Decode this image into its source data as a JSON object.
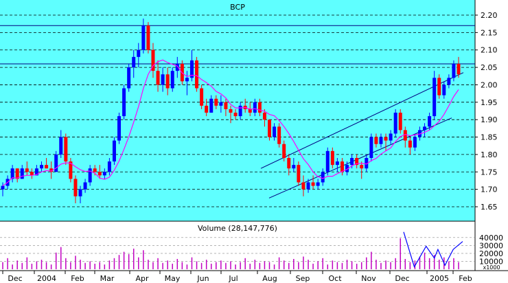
{
  "chart_data": [
    {
      "type": "candlestick",
      "title": "BCP",
      "ylim": [
        1.62,
        2.22
      ],
      "y_ticks": [
        "2.20",
        "2.15",
        "2.10",
        "2.05",
        "2.00",
        "1.95",
        "1.90",
        "1.85",
        "1.80",
        "1.75",
        "1.70",
        "1.65"
      ],
      "x_ticks": [
        "Dec",
        "2004",
        "Feb",
        "Mar",
        "Apr",
        "May",
        "Jun",
        "Jul",
        "Aug",
        "Sep",
        "Oct",
        "Nov",
        "Dec",
        "2005",
        "Feb"
      ],
      "grid": "dashed horizontal",
      "colors": {
        "background": "#5FFFFF",
        "up": "#0000FF",
        "down": "#FF0000",
        "moving_average": "#FF00FF",
        "lines": "#000080",
        "axis_text": "#000000"
      },
      "resistance_levels": [
        2.17,
        2.06
      ],
      "channel": {
        "upper": [
          [
            "Aug",
            1.76
          ],
          [
            "Feb",
            2.035
          ]
        ],
        "lower": [
          [
            "Aug",
            1.675
          ],
          [
            "Feb",
            1.905
          ]
        ]
      },
      "series": [
        {
          "values": [
            [
              1.7,
              1.72,
              1.68,
              1.71
            ],
            [
              1.71,
              1.74,
              1.7,
              1.73
            ],
            [
              1.73,
              1.77,
              1.72,
              1.76
            ],
            [
              1.76,
              1.76,
              1.72,
              1.73
            ],
            [
              1.73,
              1.77,
              1.73,
              1.76
            ],
            [
              1.76,
              1.78,
              1.74,
              1.75
            ],
            [
              1.75,
              1.76,
              1.73,
              1.74
            ],
            [
              1.74,
              1.77,
              1.74,
              1.76
            ],
            [
              1.76,
              1.78,
              1.75,
              1.77
            ],
            [
              1.77,
              1.79,
              1.76,
              1.76
            ],
            [
              1.76,
              1.78,
              1.73,
              1.75
            ],
            [
              1.75,
              1.81,
              1.75,
              1.8
            ],
            [
              1.8,
              1.87,
              1.79,
              1.85
            ],
            [
              1.85,
              1.86,
              1.77,
              1.78
            ],
            [
              1.78,
              1.79,
              1.72,
              1.73
            ],
            [
              1.73,
              1.74,
              1.66,
              1.68
            ],
            [
              1.68,
              1.71,
              1.66,
              1.7
            ],
            [
              1.7,
              1.73,
              1.69,
              1.72
            ],
            [
              1.72,
              1.77,
              1.71,
              1.76
            ],
            [
              1.76,
              1.77,
              1.74,
              1.75
            ],
            [
              1.75,
              1.77,
              1.73,
              1.74
            ],
            [
              1.74,
              1.76,
              1.73,
              1.75
            ],
            [
              1.75,
              1.79,
              1.74,
              1.78
            ],
            [
              1.78,
              1.85,
              1.77,
              1.84
            ],
            [
              1.84,
              1.92,
              1.83,
              1.91
            ],
            [
              1.91,
              2.0,
              1.9,
              1.99
            ],
            [
              1.99,
              2.06,
              1.98,
              2.05
            ],
            [
              2.05,
              2.1,
              2.02,
              2.08
            ],
            [
              2.08,
              2.12,
              2.05,
              2.1
            ],
            [
              2.1,
              2.19,
              2.09,
              2.17
            ],
            [
              2.17,
              2.18,
              2.09,
              2.1
            ],
            [
              2.1,
              2.12,
              2.02,
              2.04
            ],
            [
              2.04,
              2.07,
              1.98,
              2.0
            ],
            [
              2.0,
              2.05,
              1.98,
              2.03
            ],
            [
              2.03,
              2.05,
              1.97,
              1.99
            ],
            [
              1.99,
              2.05,
              1.98,
              2.04
            ],
            [
              2.04,
              2.08,
              2.02,
              2.06
            ],
            [
              2.06,
              2.07,
              2.0,
              2.01
            ],
            [
              2.01,
              2.04,
              1.97,
              2.02
            ],
            [
              2.02,
              2.1,
              2.01,
              2.07
            ],
            [
              2.07,
              2.08,
              1.98,
              1.99
            ],
            [
              1.99,
              2.0,
              1.93,
              1.94
            ],
            [
              1.94,
              1.96,
              1.91,
              1.92
            ],
            [
              1.92,
              1.97,
              1.92,
              1.96
            ],
            [
              1.96,
              1.97,
              1.93,
              1.94
            ],
            [
              1.94,
              1.97,
              1.92,
              1.95
            ],
            [
              1.95,
              1.96,
              1.91,
              1.93
            ],
            [
              1.93,
              1.94,
              1.89,
              1.92
            ],
            [
              1.92,
              1.93,
              1.9,
              1.91
            ],
            [
              1.91,
              1.95,
              1.9,
              1.94
            ],
            [
              1.94,
              1.96,
              1.92,
              1.93
            ],
            [
              1.93,
              1.95,
              1.91,
              1.92
            ],
            [
              1.92,
              1.96,
              1.91,
              1.95
            ],
            [
              1.95,
              1.96,
              1.91,
              1.92
            ],
            [
              1.92,
              1.93,
              1.88,
              1.9
            ],
            [
              1.9,
              1.88,
              1.84,
              1.85
            ],
            [
              1.85,
              1.89,
              1.84,
              1.88
            ],
            [
              1.88,
              1.89,
              1.82,
              1.83
            ],
            [
              1.83,
              1.84,
              1.78,
              1.79
            ],
            [
              1.79,
              1.8,
              1.74,
              1.76
            ],
            [
              1.76,
              1.79,
              1.75,
              1.77
            ],
            [
              1.77,
              1.78,
              1.71,
              1.72
            ],
            [
              1.72,
              1.74,
              1.68,
              1.7
            ],
            [
              1.7,
              1.73,
              1.69,
              1.72
            ],
            [
              1.72,
              1.74,
              1.7,
              1.71
            ],
            [
              1.71,
              1.73,
              1.7,
              1.72
            ],
            [
              1.72,
              1.76,
              1.71,
              1.75
            ],
            [
              1.75,
              1.82,
              1.74,
              1.81
            ],
            [
              1.81,
              1.82,
              1.76,
              1.77
            ],
            [
              1.77,
              1.79,
              1.75,
              1.78
            ],
            [
              1.78,
              1.79,
              1.74,
              1.75
            ],
            [
              1.75,
              1.78,
              1.74,
              1.77
            ],
            [
              1.77,
              1.8,
              1.76,
              1.79
            ],
            [
              1.79,
              1.8,
              1.76,
              1.77
            ],
            [
              1.77,
              1.78,
              1.73,
              1.76
            ],
            [
              1.76,
              1.8,
              1.75,
              1.79
            ],
            [
              1.79,
              1.86,
              1.78,
              1.85
            ],
            [
              1.85,
              1.86,
              1.82,
              1.83
            ],
            [
              1.83,
              1.86,
              1.82,
              1.85
            ],
            [
              1.85,
              1.86,
              1.81,
              1.84
            ],
            [
              1.84,
              1.87,
              1.83,
              1.86
            ],
            [
              1.86,
              1.93,
              1.85,
              1.92
            ],
            [
              1.92,
              1.93,
              1.86,
              1.87
            ],
            [
              1.87,
              1.88,
              1.82,
              1.84
            ],
            [
              1.84,
              1.85,
              1.8,
              1.82
            ],
            [
              1.82,
              1.86,
              1.81,
              1.85
            ],
            [
              1.85,
              1.88,
              1.84,
              1.87
            ],
            [
              1.87,
              1.89,
              1.85,
              1.88
            ],
            [
              1.88,
              1.92,
              1.87,
              1.91
            ],
            [
              1.91,
              2.04,
              1.9,
              2.02
            ],
            [
              2.02,
              2.03,
              1.96,
              1.97
            ],
            [
              1.97,
              2.01,
              1.96,
              2.0
            ],
            [
              2.0,
              2.03,
              1.99,
              2.02
            ],
            [
              2.02,
              2.07,
              2.01,
              2.06
            ],
            [
              2.06,
              2.08,
              2.02,
              2.03
            ]
          ]
        }
      ],
      "moving_average_note": "magenta moving-average line computed from close values",
      "volume": {
        "label": "Volume (28,147,776)",
        "scale_label": "x1000",
        "y_ticks": [
          "40000",
          "30000",
          "20000",
          "10000"
        ],
        "ylim": [
          0,
          45000
        ],
        "values": [
          9000,
          14000,
          6000,
          11000,
          8000,
          15000,
          7000,
          10000,
          12000,
          9000,
          6000,
          21000,
          28000,
          14000,
          9000,
          17000,
          12000,
          8000,
          10000,
          7000,
          9000,
          6000,
          11000,
          14000,
          18000,
          22000,
          19000,
          26000,
          15000,
          24000,
          12000,
          9000,
          14000,
          8000,
          11000,
          7000,
          13000,
          9000,
          6000,
          15000,
          10000,
          8000,
          12000,
          7000,
          9000,
          11000,
          8000,
          10000,
          6000,
          9000,
          14000,
          7000,
          12000,
          8000,
          10000,
          9000,
          6000,
          15000,
          11000,
          8000,
          13000,
          9000,
          16000,
          12000,
          7000,
          10000,
          14000,
          6000,
          11000,
          9000,
          8000,
          12000,
          10000,
          7000,
          9000,
          15000,
          22000,
          12000,
          8000,
          11000,
          9000,
          14000,
          39000,
          13000,
          9000,
          11000,
          16000,
          21000,
          14000,
          18000,
          12000,
          15000,
          10000,
          14000,
          9000
        ],
        "overlay": [
          [
            0,
            47000
          ],
          [
            0.18,
            3000
          ],
          [
            0.38,
            29000
          ],
          [
            0.52,
            14000
          ],
          [
            0.58,
            25000
          ],
          [
            0.7,
            5000
          ],
          [
            0.84,
            25000
          ],
          [
            1,
            35000
          ]
        ]
      }
    }
  ]
}
